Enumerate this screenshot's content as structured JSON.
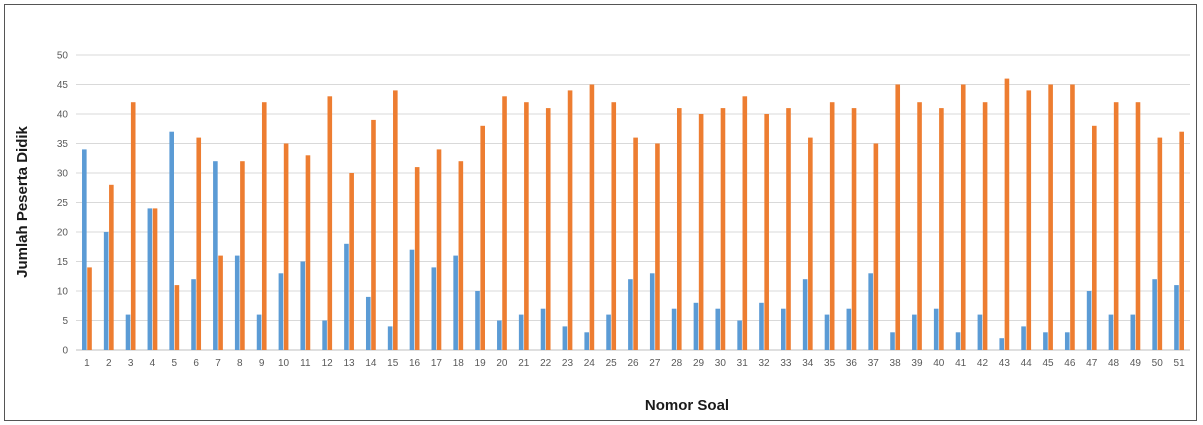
{
  "chart_data": {
    "type": "bar",
    "title": "",
    "xlabel": "Nomor Soal",
    "ylabel": "Jumlah Peserta Didik",
    "ylim": [
      0,
      50
    ],
    "yticks": [
      0,
      5,
      10,
      15,
      20,
      25,
      30,
      35,
      40,
      45,
      50
    ],
    "grid": true,
    "legend": "none",
    "categories": [
      "1",
      "2",
      "3",
      "4",
      "5",
      "6",
      "7",
      "8",
      "9",
      "10",
      "11",
      "12",
      "13",
      "14",
      "15",
      "16",
      "17",
      "18",
      "19",
      "20",
      "21",
      "22",
      "23",
      "24",
      "25",
      "26",
      "27",
      "28",
      "29",
      "30",
      "31",
      "32",
      "33",
      "34",
      "35",
      "36",
      "37",
      "38",
      "39",
      "40",
      "41",
      "42",
      "43",
      "44",
      "45",
      "46",
      "47",
      "48",
      "49",
      "50",
      "51"
    ],
    "series": [
      {
        "color": "#5b9bd5",
        "values": [
          34,
          20,
          6,
          24,
          37,
          12,
          32,
          16,
          6,
          13,
          15,
          5,
          18,
          9,
          4,
          17,
          14,
          16,
          10,
          5,
          6,
          7,
          4,
          3,
          6,
          12,
          13,
          7,
          8,
          7,
          5,
          8,
          7,
          12,
          6,
          7,
          13,
          3,
          6,
          7,
          3,
          6,
          2,
          4,
          3,
          3,
          10,
          6,
          6,
          12,
          11
        ]
      },
      {
        "color": "#ed7d31",
        "values": [
          14,
          28,
          42,
          24,
          11,
          36,
          16,
          32,
          42,
          35,
          33,
          43,
          30,
          39,
          44,
          31,
          34,
          32,
          38,
          43,
          42,
          41,
          44,
          45,
          42,
          36,
          35,
          41,
          40,
          41,
          43,
          40,
          41,
          36,
          42,
          41,
          35,
          45,
          42,
          41,
          45,
          42,
          46,
          44,
          45,
          45,
          38,
          42,
          42,
          36,
          37
        ]
      }
    ]
  }
}
